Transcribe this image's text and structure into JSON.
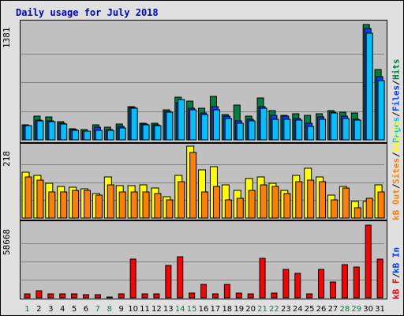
{
  "title": "Daily usage for July 2018",
  "axis_max": {
    "top": "1381",
    "mid": "218",
    "bot": "58668"
  },
  "legend": {
    "top": {
      "pages": "Pages",
      "files": "Files",
      "hits": "Hits",
      "sep1": "/",
      "sep2": "/"
    },
    "mid": {
      "visits": "Visits",
      "sites": "Sites",
      "kbout": "kB Out",
      "sep1": "/",
      "sep2": "/"
    },
    "bot": {
      "kbin": "kB In",
      "kbf": "kB F",
      "sep1": "/",
      "sep2": "/"
    }
  },
  "colors": {
    "hits": "#008040",
    "files": "#0040ff",
    "pages": "#00c0ff",
    "visits": "#ffff00",
    "sites": "#ff8000",
    "kbin": "#ff0000",
    "weekday_label": "#000000",
    "weekend_label": "#008040",
    "panel_bg": "#c0c0c0",
    "frame_bg": "#e0e0e0",
    "title": "#0000cc"
  },
  "chart_data": [
    {
      "type": "bar",
      "title": "Daily usage for July 2018",
      "ylim": [
        0,
        1381
      ],
      "categories": [
        "1",
        "2",
        "3",
        "4",
        "5",
        "6",
        "7",
        "8",
        "9",
        "10",
        "11",
        "12",
        "13",
        "14",
        "15",
        "16",
        "17",
        "18",
        "19",
        "20",
        "21",
        "22",
        "23",
        "24",
        "25",
        "26",
        "27",
        "28",
        "29",
        "30",
        "31"
      ],
      "weekend_days": [
        "1",
        "7",
        "8",
        "14",
        "15",
        "21",
        "22",
        "28",
        "29"
      ],
      "series": [
        {
          "name": "Hits",
          "values": [
            180,
            280,
            270,
            220,
            130,
            120,
            180,
            150,
            190,
            400,
            200,
            200,
            360,
            510,
            460,
            380,
            520,
            300,
            420,
            280,
            500,
            350,
            290,
            310,
            290,
            310,
            350,
            330,
            320,
            1381,
            840
          ]
        },
        {
          "name": "Files",
          "values": [
            170,
            240,
            230,
            200,
            120,
            100,
            150,
            120,
            160,
            390,
            190,
            180,
            340,
            440,
            380,
            320,
            400,
            280,
            230,
            250,
            400,
            290,
            280,
            260,
            200,
            270,
            330,
            280,
            250,
            1330,
            760
          ]
        },
        {
          "name": "Pages",
          "values": [
            170,
            230,
            220,
            190,
            110,
            100,
            110,
            110,
            140,
            380,
            180,
            170,
            330,
            480,
            360,
            300,
            360,
            260,
            200,
            230,
            380,
            250,
            250,
            240,
            160,
            250,
            320,
            260,
            240,
            1280,
            710
          ]
        }
      ]
    },
    {
      "type": "bar",
      "ylim": [
        0,
        218
      ],
      "categories": [
        "1",
        "2",
        "3",
        "4",
        "5",
        "6",
        "7",
        "8",
        "9",
        "10",
        "11",
        "12",
        "13",
        "14",
        "15",
        "16",
        "17",
        "18",
        "19",
        "20",
        "21",
        "22",
        "23",
        "24",
        "25",
        "26",
        "27",
        "28",
        "29",
        "30",
        "31"
      ],
      "series": [
        {
          "name": "Visits",
          "values": [
            140,
            130,
            105,
            95,
            93,
            88,
            75,
            125,
            98,
            98,
            100,
            90,
            65,
            130,
            218,
            145,
            155,
            100,
            85,
            120,
            125,
            105,
            85,
            130,
            150,
            125,
            70,
            95,
            50,
            50,
            100
          ]
        },
        {
          "name": "Sites",
          "values": [
            125,
            115,
            80,
            80,
            85,
            85,
            70,
            100,
            80,
            80,
            80,
            75,
            55,
            110,
            200,
            80,
            95,
            55,
            60,
            85,
            100,
            95,
            75,
            110,
            115,
            110,
            55,
            90,
            30,
            60,
            80
          ]
        }
      ]
    },
    {
      "type": "bar",
      "ylim": [
        0,
        58668
      ],
      "categories": [
        "1",
        "2",
        "3",
        "4",
        "5",
        "6",
        "7",
        "8",
        "9",
        "10",
        "11",
        "12",
        "13",
        "14",
        "15",
        "16",
        "17",
        "18",
        "19",
        "20",
        "21",
        "22",
        "23",
        "24",
        "25",
        "26",
        "27",
        "28",
        "29",
        "30",
        "31"
      ],
      "series": [
        {
          "name": "kB In",
          "values": [
            0,
            0,
            0,
            0,
            0,
            0,
            0,
            0,
            0,
            0,
            0,
            0,
            0,
            0,
            0,
            0,
            0,
            0,
            0,
            0,
            0,
            0,
            0,
            0,
            0,
            0,
            0,
            0,
            0,
            0,
            0
          ]
        },
        {
          "name": "kB F",
          "values": [
            3500,
            6000,
            3500,
            3000,
            3000,
            2500,
            2500,
            500,
            3000,
            31000,
            3000,
            3000,
            26000,
            33000,
            4000,
            11000,
            3000,
            11000,
            4000,
            3000,
            32000,
            4000,
            23000,
            20000,
            3000,
            23000,
            13000,
            27000,
            25000,
            58668,
            31000
          ]
        }
      ]
    }
  ]
}
